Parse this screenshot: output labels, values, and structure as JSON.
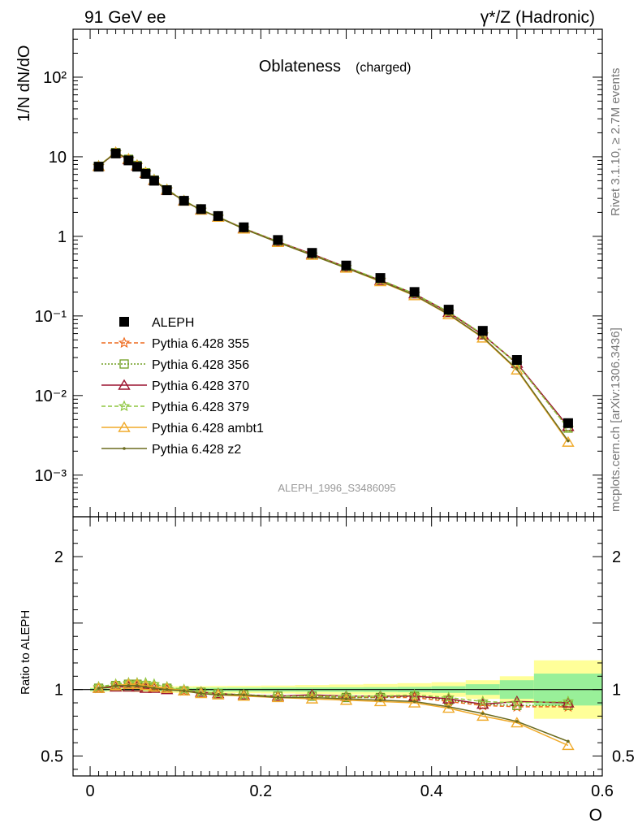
{
  "header": {
    "left": "91 GeV ee",
    "right": "γ*/Z (Hadronic)"
  },
  "side_labels": {
    "rivet": "Rivet 3.1.10, ≥ 2.7M events",
    "mcplots": "mcplots.cern.ch [arXiv:1306.3436]"
  },
  "chart_data": [
    {
      "type": "line",
      "panel": "main",
      "title": "Oblateness",
      "subtitle": "(charged)",
      "xlabel": "O",
      "ylabel": "1/N dN/dO",
      "yscale": "log",
      "xlim": [
        -0.02,
        0.6
      ],
      "ylim": [
        0.0003,
        400
      ],
      "ytick_labels": [
        "10⁻³",
        "10⁻²",
        "10⁻¹",
        "1",
        "10",
        "10²"
      ],
      "watermark": "ALEPH_1996_S3486095",
      "legend_position": "middle-left",
      "x": [
        0.01,
        0.03,
        0.045,
        0.055,
        0.065,
        0.075,
        0.09,
        0.11,
        0.13,
        0.15,
        0.18,
        0.22,
        0.26,
        0.3,
        0.34,
        0.38,
        0.42,
        0.46,
        0.5,
        0.56
      ],
      "series": [
        {
          "name": "ALEPH",
          "color": "#000000",
          "marker": "square",
          "values": [
            7.5,
            11.0,
            9.0,
            7.5,
            6.1,
            5.0,
            3.8,
            2.8,
            2.2,
            1.8,
            1.3,
            0.9,
            0.62,
            0.43,
            0.3,
            0.2,
            0.12,
            0.065,
            0.028,
            0.0045
          ]
        },
        {
          "name": "Pythia 6.428 355",
          "color": "#ee6a1e",
          "dash": "5,3",
          "marker": "star",
          "values": [
            7.6,
            11.3,
            9.3,
            7.8,
            6.3,
            5.1,
            3.85,
            2.8,
            2.15,
            1.75,
            1.25,
            0.86,
            0.59,
            0.41,
            0.28,
            0.19,
            0.11,
            0.058,
            0.025,
            0.0039
          ]
        },
        {
          "name": "Pythia 6.428 356",
          "color": "#6f9e1e",
          "dash": "2,2",
          "marker": "open-square",
          "values": [
            7.6,
            11.3,
            9.3,
            7.8,
            6.3,
            5.1,
            3.85,
            2.8,
            2.15,
            1.75,
            1.25,
            0.86,
            0.59,
            0.41,
            0.28,
            0.19,
            0.11,
            0.058,
            0.025,
            0.0039
          ]
        },
        {
          "name": "Pythia 6.428 370",
          "color": "#9c1430",
          "dash": "",
          "marker": "open-triangle",
          "values": [
            7.6,
            11.2,
            9.2,
            7.7,
            6.2,
            5.05,
            3.8,
            2.8,
            2.15,
            1.75,
            1.26,
            0.86,
            0.6,
            0.41,
            0.28,
            0.19,
            0.111,
            0.058,
            0.0255,
            0.0041
          ]
        },
        {
          "name": "Pythia 6.428 379",
          "color": "#8ec63f",
          "dash": "5,3",
          "marker": "star",
          "values": [
            7.7,
            11.4,
            9.4,
            7.9,
            6.4,
            5.2,
            3.9,
            2.82,
            2.16,
            1.76,
            1.26,
            0.86,
            0.59,
            0.41,
            0.285,
            0.19,
            0.113,
            0.059,
            0.025,
            0.0039
          ]
        },
        {
          "name": "Pythia 6.428 ambt1",
          "color": "#f0aa2a",
          "dash": "",
          "marker": "open-triangle",
          "values": [
            7.6,
            11.4,
            9.4,
            7.8,
            6.3,
            5.1,
            3.85,
            2.78,
            2.14,
            1.74,
            1.24,
            0.84,
            0.58,
            0.4,
            0.27,
            0.18,
            0.104,
            0.053,
            0.021,
            0.0026
          ]
        },
        {
          "name": "Pythia 6.428 z2",
          "color": "#6b6b1f",
          "dash": "",
          "marker": "dot",
          "values": [
            7.6,
            11.3,
            9.3,
            7.75,
            6.25,
            5.05,
            3.82,
            2.78,
            2.14,
            1.74,
            1.24,
            0.84,
            0.58,
            0.4,
            0.275,
            0.182,
            0.105,
            0.054,
            0.0215,
            0.0027
          ]
        }
      ]
    },
    {
      "type": "line",
      "panel": "ratio",
      "xlabel": "O",
      "ylabel": "Ratio to ALEPH",
      "xlim": [
        -0.02,
        0.6
      ],
      "ylim": [
        0.35,
        2.3
      ],
      "ytick_labels": [
        "0.5",
        "1",
        "2"
      ],
      "xtick_labels": [
        "0",
        "0.2",
        "0.4",
        "0.6"
      ],
      "x": [
        0.01,
        0.03,
        0.045,
        0.055,
        0.065,
        0.075,
        0.09,
        0.11,
        0.13,
        0.15,
        0.18,
        0.22,
        0.26,
        0.3,
        0.34,
        0.38,
        0.42,
        0.46,
        0.5,
        0.56
      ],
      "bands": {
        "bin_edges": [
          0.0,
          0.02,
          0.04,
          0.05,
          0.06,
          0.07,
          0.08,
          0.1,
          0.12,
          0.14,
          0.16,
          0.2,
          0.24,
          0.28,
          0.32,
          0.36,
          0.4,
          0.44,
          0.48,
          0.52,
          0.6
        ],
        "stat_half_width": [
          0.01,
          0.008,
          0.008,
          0.009,
          0.01,
          0.011,
          0.012,
          0.012,
          0.013,
          0.014,
          0.014,
          0.015,
          0.016,
          0.017,
          0.018,
          0.02,
          0.025,
          0.04,
          0.07,
          0.12
        ],
        "total_half_width": [
          0.015,
          0.015,
          0.016,
          0.018,
          0.02,
          0.022,
          0.024,
          0.025,
          0.026,
          0.027,
          0.028,
          0.03,
          0.034,
          0.038,
          0.042,
          0.048,
          0.055,
          0.07,
          0.1,
          0.22
        ],
        "stat_color": "#99f099",
        "total_color": "#ffff99"
      },
      "series": [
        {
          "name": "Pythia 6.428 355",
          "color": "#ee6a1e",
          "dash": "5,3",
          "marker": "star",
          "values": [
            1.01,
            1.03,
            1.04,
            1.04,
            1.03,
            1.02,
            1.01,
            0.99,
            0.98,
            0.97,
            0.96,
            0.95,
            0.95,
            0.94,
            0.94,
            0.94,
            0.91,
            0.88,
            0.87,
            0.87
          ]
        },
        {
          "name": "Pythia 6.428 356",
          "color": "#6f9e1e",
          "dash": "2,2",
          "marker": "open-square",
          "values": [
            1.01,
            1.03,
            1.04,
            1.04,
            1.03,
            1.02,
            1.01,
            0.99,
            0.98,
            0.97,
            0.96,
            0.95,
            0.95,
            0.94,
            0.94,
            0.95,
            0.92,
            0.89,
            0.88,
            0.88
          ]
        },
        {
          "name": "Pythia 6.428 370",
          "color": "#9c1430",
          "dash": "",
          "marker": "open-triangle",
          "values": [
            1.01,
            1.02,
            1.02,
            1.02,
            1.01,
            1.01,
            1.0,
            0.99,
            0.98,
            0.97,
            0.96,
            0.95,
            0.96,
            0.95,
            0.95,
            0.95,
            0.93,
            0.89,
            0.91,
            0.9
          ]
        },
        {
          "name": "Pythia 6.428 379",
          "color": "#8ec63f",
          "dash": "5,3",
          "marker": "star",
          "values": [
            1.02,
            1.04,
            1.05,
            1.05,
            1.05,
            1.04,
            1.02,
            1.0,
            0.98,
            0.97,
            0.96,
            0.95,
            0.95,
            0.95,
            0.95,
            0.96,
            0.94,
            0.91,
            0.9,
            0.91
          ]
        },
        {
          "name": "Pythia 6.428 ambt1",
          "color": "#f0aa2a",
          "dash": "",
          "marker": "open-triangle",
          "values": [
            1.01,
            1.03,
            1.04,
            1.04,
            1.03,
            1.02,
            1.01,
            0.99,
            0.97,
            0.96,
            0.95,
            0.94,
            0.93,
            0.92,
            0.91,
            0.9,
            0.86,
            0.8,
            0.75,
            0.58
          ]
        },
        {
          "name": "Pythia 6.428 z2",
          "color": "#6b6b1f",
          "dash": "",
          "marker": "dot",
          "values": [
            1.01,
            1.03,
            1.03,
            1.03,
            1.02,
            1.01,
            1.0,
            0.99,
            0.97,
            0.96,
            0.96,
            0.94,
            0.94,
            0.93,
            0.92,
            0.91,
            0.87,
            0.82,
            0.76,
            0.61
          ]
        }
      ]
    }
  ]
}
